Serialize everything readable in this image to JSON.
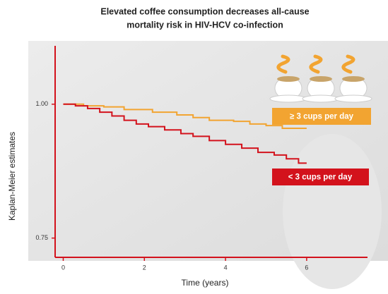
{
  "chart_data": {
    "type": "step",
    "title": [
      "Elevated coffee consumption decreases all-cause",
      "mortality risk in HIV-HCV co-infection"
    ],
    "x_label": "Time (years)",
    "y_label": "Kaplan-Meier estimates",
    "xlim": [
      -0.2,
      7.5
    ],
    "ylim": [
      0.714,
      1.109
    ],
    "xticks": [
      0,
      2,
      4,
      6
    ],
    "yticks": [
      {
        "value": 0.75,
        "label": "0.75"
      },
      {
        "value": 1,
        "label": "1.00"
      }
    ],
    "series": [
      {
        "name": "≥ 3 cups per day",
        "color": "#f2a431",
        "x": [
          0,
          0.5,
          1.0,
          1.5,
          2.2,
          2.8,
          3.2,
          3.6,
          4.2,
          4.6,
          5.0,
          5.4,
          6.0
        ],
        "values": [
          1.0,
          0.997,
          0.995,
          0.99,
          0.985,
          0.98,
          0.975,
          0.97,
          0.968,
          0.963,
          0.96,
          0.955,
          0.955
        ]
      },
      {
        "name": "< 3 cups per day",
        "color": "#d3121c",
        "x": [
          0,
          0.3,
          0.6,
          0.9,
          1.2,
          1.5,
          1.8,
          2.1,
          2.5,
          2.9,
          3.2,
          3.6,
          4.0,
          4.4,
          4.8,
          5.2,
          5.5,
          5.8,
          6.0
        ],
        "values": [
          1.0,
          0.997,
          0.992,
          0.985,
          0.978,
          0.97,
          0.963,
          0.958,
          0.952,
          0.945,
          0.94,
          0.932,
          0.925,
          0.918,
          0.91,
          0.905,
          0.898,
          0.89,
          0.89
        ]
      }
    ]
  }
}
